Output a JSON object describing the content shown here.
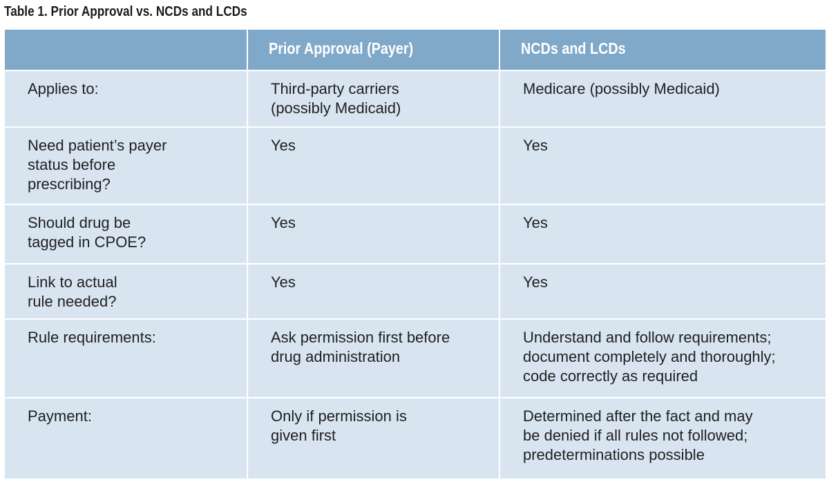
{
  "caption": "Table 1.  Prior Approval vs. NCDs and LCDs",
  "table": {
    "headers": [
      "",
      "Prior Approval (Payer)",
      "NCDs and LCDs"
    ],
    "rows": [
      [
        "Applies to:",
        "Third-party carriers\n(possibly Medicaid)",
        "Medicare (possibly Medicaid)"
      ],
      [
        "Need patient’s payer\nstatus before\nprescribing?",
        "Yes",
        "Yes"
      ],
      [
        "Should drug be\ntagged in CPOE?",
        "Yes",
        "Yes"
      ],
      [
        "Link to actual\nrule needed?",
        "Yes",
        "Yes"
      ],
      [
        "Rule requirements:",
        "Ask permission first before\ndrug administration",
        "Understand and follow requirements;\ndocument completely and thoroughly;\ncode correctly as required"
      ],
      [
        "Payment:",
        "Only if permission is\ngiven first",
        "Determined after the fact and may\nbe denied if all rules not followed;\npredeterminations possible"
      ]
    ]
  },
  "colors": {
    "header_background": "#7fa8c9",
    "body_background": "#d8e5f1",
    "header_text": "#ffffff",
    "body_text": "#1f1f1f"
  }
}
